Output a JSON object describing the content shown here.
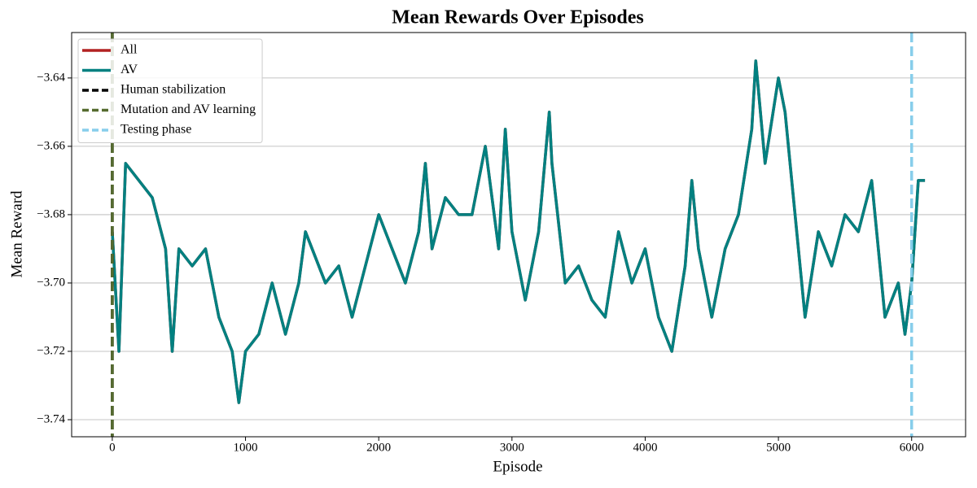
{
  "chart_data": {
    "type": "line",
    "title": "Mean Rewards Over Episodes",
    "x_label": "Episode",
    "y_label": "Mean Reward",
    "x": [
      0,
      50,
      100,
      200,
      300,
      400,
      450,
      500,
      600,
      700,
      800,
      900,
      950,
      1000,
      1100,
      1200,
      1300,
      1400,
      1450,
      1500,
      1600,
      1700,
      1800,
      1900,
      2000,
      2100,
      2200,
      2300,
      2350,
      2400,
      2500,
      2600,
      2700,
      2800,
      2900,
      2950,
      3000,
      3100,
      3200,
      3280,
      3300,
      3400,
      3500,
      3600,
      3700,
      3800,
      3900,
      4000,
      4100,
      4200,
      4300,
      4350,
      4400,
      4500,
      4600,
      4700,
      4800,
      4830,
      4900,
      5000,
      5050,
      5100,
      5200,
      5300,
      5400,
      5500,
      5600,
      5700,
      5800,
      5900,
      5950,
      6000,
      6050,
      6100
    ],
    "series": [
      {
        "name": "All",
        "color": "#b22222",
        "values": [
          -3.685,
          -3.72,
          -3.665,
          -3.67,
          -3.675,
          -3.69,
          -3.72,
          -3.69,
          -3.695,
          -3.69,
          -3.71,
          -3.72,
          -3.735,
          -3.72,
          -3.715,
          -3.7,
          -3.715,
          -3.7,
          -3.685,
          -3.69,
          -3.7,
          -3.695,
          -3.71,
          -3.695,
          -3.68,
          -3.69,
          -3.7,
          -3.685,
          -3.665,
          -3.69,
          -3.675,
          -3.68,
          -3.68,
          -3.66,
          -3.69,
          -3.655,
          -3.685,
          -3.705,
          -3.685,
          -3.65,
          -3.665,
          -3.7,
          -3.695,
          -3.705,
          -3.71,
          -3.685,
          -3.7,
          -3.69,
          -3.71,
          -3.72,
          -3.695,
          -3.67,
          -3.69,
          -3.71,
          -3.69,
          -3.68,
          -3.655,
          -3.635,
          -3.665,
          -3.64,
          -3.65,
          -3.67,
          -3.71,
          -3.685,
          -3.695,
          -3.68,
          -3.685,
          -3.67,
          -3.71,
          -3.7,
          -3.715,
          -3.7,
          -3.67,
          -3.67
        ]
      },
      {
        "name": "AV",
        "color": "#008080",
        "values": [
          -3.685,
          -3.72,
          -3.665,
          -3.67,
          -3.675,
          -3.69,
          -3.72,
          -3.69,
          -3.695,
          -3.69,
          -3.71,
          -3.72,
          -3.735,
          -3.72,
          -3.715,
          -3.7,
          -3.715,
          -3.7,
          -3.685,
          -3.69,
          -3.7,
          -3.695,
          -3.71,
          -3.695,
          -3.68,
          -3.69,
          -3.7,
          -3.685,
          -3.665,
          -3.69,
          -3.675,
          -3.68,
          -3.68,
          -3.66,
          -3.69,
          -3.655,
          -3.685,
          -3.705,
          -3.685,
          -3.65,
          -3.665,
          -3.7,
          -3.695,
          -3.705,
          -3.71,
          -3.685,
          -3.7,
          -3.69,
          -3.71,
          -3.72,
          -3.695,
          -3.67,
          -3.69,
          -3.71,
          -3.69,
          -3.68,
          -3.655,
          -3.635,
          -3.665,
          -3.64,
          -3.65,
          -3.67,
          -3.71,
          -3.685,
          -3.695,
          -3.68,
          -3.685,
          -3.67,
          -3.71,
          -3.7,
          -3.715,
          -3.7,
          -3.67,
          -3.67
        ]
      }
    ],
    "vlines": [
      {
        "name": "Human stabilization",
        "color": "#000000",
        "x": 0
      },
      {
        "name": "Mutation and AV learning",
        "color": "#556b2f",
        "x": 0
      },
      {
        "name": "Testing phase",
        "color": "#87ceeb",
        "x": 6000
      }
    ],
    "xlim": [
      -305,
      6405
    ],
    "ylim": [
      -3.745,
      -3.6267
    ],
    "xticks": [
      0,
      1000,
      2000,
      3000,
      4000,
      5000,
      6000
    ],
    "yticks": [
      {
        "value": -3.74,
        "label": "−3.74"
      },
      {
        "value": -3.72,
        "label": "−3.72"
      },
      {
        "value": -3.7,
        "label": "−3.70"
      },
      {
        "value": -3.68,
        "label": "−3.68"
      },
      {
        "value": -3.66,
        "label": "−3.66"
      },
      {
        "value": -3.64,
        "label": "−3.64"
      }
    ],
    "grid": "y",
    "legend": "upper left"
  }
}
